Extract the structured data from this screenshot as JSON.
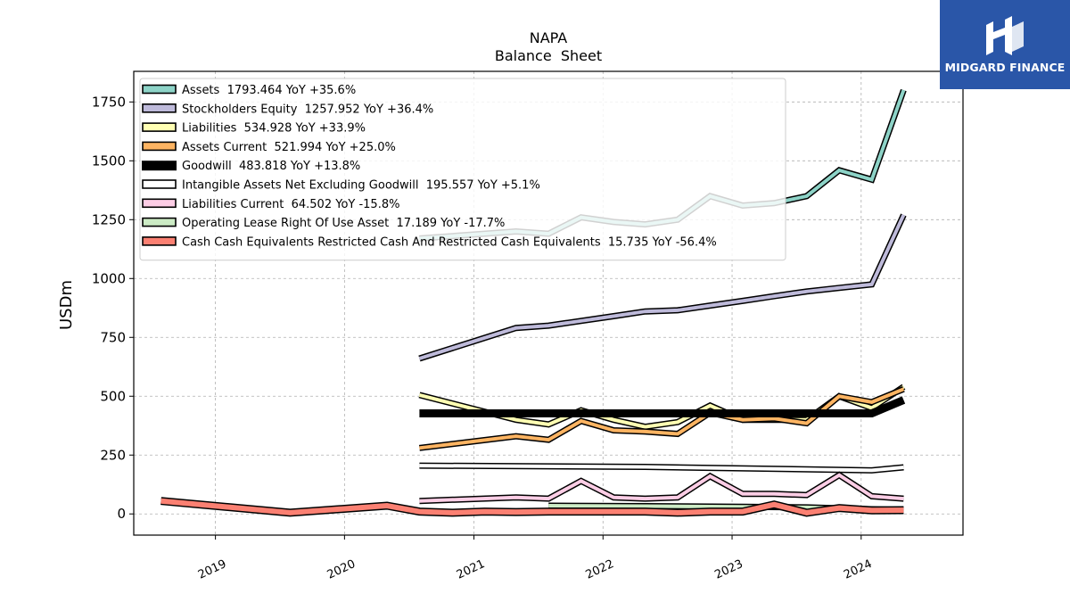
{
  "chart_data": {
    "type": "line",
    "title": "NAPA",
    "subtitle": "Balance  Sheet",
    "ylabel": "USDm",
    "ylim": [
      -90,
      1880
    ],
    "xlim": [
      "2018-05-15",
      "2024-10-15"
    ],
    "y_ticks": [
      0,
      250,
      500,
      750,
      1000,
      1250,
      1500,
      1750
    ],
    "x_ticks": [
      {
        "date": "2019-01-01",
        "label": "2019"
      },
      {
        "date": "2020-01-01",
        "label": "2020"
      },
      {
        "date": "2021-01-01",
        "label": "2021"
      },
      {
        "date": "2022-01-01",
        "label": "2022"
      },
      {
        "date": "2023-01-01",
        "label": "2023"
      },
      {
        "date": "2024-01-01",
        "label": "2024"
      }
    ],
    "grid": true,
    "legend_position": "top-left",
    "series": [
      {
        "name": "Assets  1793.464 YoY +35.6%",
        "color": "#8dd3c7",
        "width": 4,
        "x": [
          "2020-07-31",
          "2021-04-30",
          "2021-07-31",
          "2021-10-31",
          "2022-01-31",
          "2022-04-30",
          "2022-07-31",
          "2022-10-31",
          "2023-01-31",
          "2023-04-30",
          "2023-07-31",
          "2023-10-31",
          "2024-01-31",
          "2024-04-30"
        ],
        "y": [
          1170,
          1200,
          1190,
          1260,
          1240,
          1230,
          1250,
          1350,
          1310,
          1320,
          1350,
          1460,
          1420,
          1800
        ]
      },
      {
        "name": "Stockholders Equity  1257.952 YoY +36.4%",
        "color": "#bebada",
        "width": 4,
        "x": [
          "2020-07-31",
          "2021-04-30",
          "2021-07-31",
          "2021-10-31",
          "2022-01-31",
          "2022-04-30",
          "2022-07-31",
          "2022-10-31",
          "2023-01-31",
          "2023-04-30",
          "2023-07-31",
          "2023-10-31",
          "2024-01-31",
          "2024-04-30"
        ],
        "y": [
          660,
          790,
          800,
          820,
          840,
          860,
          865,
          885,
          905,
          925,
          945,
          960,
          975,
          1270
        ]
      },
      {
        "name": "Liabilities  534.928 YoY +33.9%",
        "color": "#ffffb3",
        "width": 4,
        "x": [
          "2020-07-31",
          "2021-04-30",
          "2021-07-31",
          "2021-10-31",
          "2022-01-31",
          "2022-04-30",
          "2022-07-31",
          "2022-10-31",
          "2023-01-31",
          "2023-04-30",
          "2023-07-31",
          "2023-10-31",
          "2024-01-31",
          "2024-04-30"
        ],
        "y": [
          505,
          400,
          380,
          440,
          400,
          370,
          390,
          460,
          400,
          400,
          400,
          500,
          450,
          540
        ]
      },
      {
        "name": "Assets Current  521.994 YoY +25.0%",
        "color": "#fdb462",
        "width": 4,
        "x": [
          "2020-07-31",
          "2021-04-30",
          "2021-07-31",
          "2021-10-31",
          "2022-01-31",
          "2022-04-30",
          "2022-07-31",
          "2022-10-31",
          "2023-01-31",
          "2023-04-30",
          "2023-07-31",
          "2023-10-31",
          "2024-01-31",
          "2024-04-30"
        ],
        "y": [
          280,
          330,
          315,
          395,
          355,
          350,
          340,
          430,
          400,
          405,
          385,
          500,
          475,
          530
        ]
      },
      {
        "name": "Goodwill  483.818 YoY +13.8%",
        "color": "#000000",
        "width": 9,
        "x": [
          "2020-07-31",
          "2021-04-30",
          "2021-07-31",
          "2021-10-31",
          "2022-01-31",
          "2022-04-30",
          "2022-07-31",
          "2022-10-31",
          "2023-01-31",
          "2023-04-30",
          "2023-07-31",
          "2023-10-31",
          "2024-01-31",
          "2024-04-30"
        ],
        "y": [
          427,
          427,
          427,
          427,
          427,
          427,
          427,
          427,
          427,
          427,
          427,
          427,
          427,
          484
        ]
      },
      {
        "name": "Intangible Assets Net Excluding Goodwill  195.557 YoY +5.1%",
        "color": "#ffffff",
        "width": 4,
        "x": [
          "2020-07-31",
          "2022-04-30",
          "2024-01-31",
          "2024-04-30"
        ],
        "y": [
          205,
          200,
          185,
          198
        ]
      },
      {
        "name": "Liabilities Current  64.502 YoY -15.8%",
        "color": "#fccde5",
        "width": 4,
        "x": [
          "2020-07-31",
          "2021-04-30",
          "2021-07-31",
          "2021-10-31",
          "2022-01-31",
          "2022-04-30",
          "2022-07-31",
          "2022-10-31",
          "2023-01-31",
          "2023-04-30",
          "2023-07-31",
          "2023-10-31",
          "2024-01-31",
          "2024-04-30"
        ],
        "y": [
          55,
          70,
          65,
          140,
          70,
          65,
          70,
          160,
          85,
          85,
          80,
          165,
          75,
          65
        ]
      },
      {
        "name": "Operating Lease Right Of Use Asset  17.189 YoY -17.7%",
        "color": "#ccebc5",
        "width": 4,
        "x": [
          "2021-07-31",
          "2022-04-30",
          "2023-01-31",
          "2023-07-31",
          "2024-01-31",
          "2024-04-30"
        ],
        "y": [
          35,
          33,
          30,
          28,
          20,
          17
        ]
      },
      {
        "name": "Cash Cash Equivalents Restricted Cash And Restricted Cash Equivalents  15.735 YoY -56.4%",
        "color": "#fb8072",
        "width": 6,
        "x": [
          "2018-07-31",
          "2019-07-31",
          "2020-04-30",
          "2020-07-31",
          "2020-10-31",
          "2021-01-31",
          "2021-04-30",
          "2021-07-31",
          "2021-10-31",
          "2022-01-31",
          "2022-04-30",
          "2022-07-31",
          "2022-10-31",
          "2023-01-31",
          "2023-04-30",
          "2023-07-31",
          "2023-10-31",
          "2024-01-31",
          "2024-04-30"
        ],
        "y": [
          55,
          5,
          35,
          10,
          5,
          10,
          8,
          10,
          10,
          10,
          10,
          5,
          10,
          10,
          40,
          5,
          25,
          15,
          16
        ]
      }
    ]
  },
  "branding": {
    "logo_text": "MIDGARD FINANCE",
    "logo_color": "#2a56a8"
  }
}
